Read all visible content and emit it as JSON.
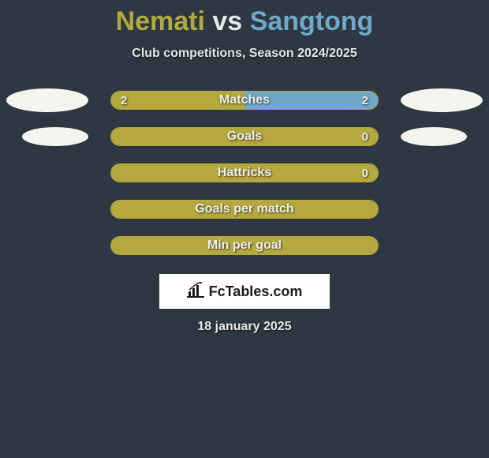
{
  "title": {
    "player1": "Nemati",
    "vs": "vs",
    "player2": "Sangtong"
  },
  "subtitle": "Club competitions, Season 2024/2025",
  "colors": {
    "player1": "#b4a83e",
    "player2": "#6fa8c8",
    "background": "#2d3842",
    "text": "#e8e8e8",
    "avatar": "#f5f5f0"
  },
  "rows": [
    {
      "label": "Matches",
      "val1": "2",
      "val2": "2",
      "pct1": 50,
      "pct2": 50,
      "show_vals": true,
      "avatar": "large"
    },
    {
      "label": "Goals",
      "val1": "",
      "val2": "0",
      "pct1": 100,
      "pct2": 0,
      "show_vals": true,
      "avatar": "small"
    },
    {
      "label": "Hattricks",
      "val1": "",
      "val2": "0",
      "pct1": 100,
      "pct2": 0,
      "show_vals": true,
      "avatar": "none"
    },
    {
      "label": "Goals per match",
      "val1": "",
      "val2": "",
      "pct1": 100,
      "pct2": 0,
      "show_vals": false,
      "avatar": "none"
    },
    {
      "label": "Min per goal",
      "val1": "",
      "val2": "",
      "pct1": 100,
      "pct2": 0,
      "show_vals": false,
      "avatar": "none"
    }
  ],
  "logo": {
    "text": "FcTables.com"
  },
  "date": "18 january 2025"
}
